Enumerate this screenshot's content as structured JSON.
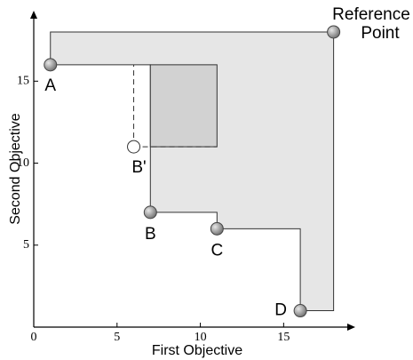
{
  "chart_data": {
    "type": "hypervolume",
    "x_label": "First Objective",
    "y_label": "Second Objective",
    "xlim": [
      0,
      19.3
    ],
    "ylim": [
      0,
      19.3
    ],
    "xticks": [
      0,
      5,
      10,
      15
    ],
    "yticks": [
      5,
      10,
      15
    ],
    "points": [
      {
        "label": "A",
        "x": 1,
        "y": 16
      },
      {
        "label": "B",
        "x": 7,
        "y": 7
      },
      {
        "label": "C",
        "x": 11,
        "y": 6
      },
      {
        "label": "D",
        "x": 16,
        "y": 1
      }
    ],
    "candidate": {
      "label": "B'",
      "x": 6,
      "y": 11
    },
    "reference": {
      "label": [
        "Reference",
        "Point"
      ],
      "x": 18,
      "y": 18
    },
    "region_color": "#e6e6e6",
    "gain_color": "#d2d2d2",
    "point_color": "#8c8c8c"
  }
}
